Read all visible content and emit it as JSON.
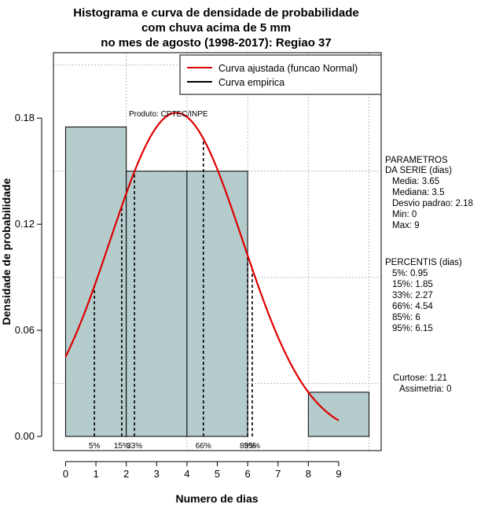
{
  "chart_data": {
    "type": "bar",
    "title_lines": [
      "Histograma e curva de densidade de probabilidade",
      "com chuva acima de 5 mm",
      "no mes de agosto (1998-2017): Regiao 37"
    ],
    "xlabel": "Numero de dias",
    "ylabel": "Densidade de probabilidade",
    "xlim": [
      -0.4,
      10.4
    ],
    "ylim": [
      -0.008,
      0.217
    ],
    "x_ticks": [
      0,
      1,
      2,
      3,
      4,
      5,
      6,
      7,
      8,
      9
    ],
    "y_ticks": [
      0.0,
      0.06,
      0.12,
      0.18
    ],
    "y_tick_labels": [
      "0.00",
      "0.06",
      "0.12",
      "0.18"
    ],
    "histogram": [
      {
        "x0": 0,
        "x1": 2,
        "density": 0.175
      },
      {
        "x0": 2,
        "x1": 4,
        "density": 0.15
      },
      {
        "x0": 4,
        "x1": 6,
        "density": 0.15
      },
      {
        "x0": 6,
        "x1": 8,
        "density": 0.0
      },
      {
        "x0": 8,
        "x1": 10,
        "density": 0.025
      }
    ],
    "bar_color": "#b5cccc",
    "curve_color": "#dd0000",
    "normal_fit": {
      "mean": 3.65,
      "sd": 2.18,
      "x_from": 0,
      "x_to": 9
    },
    "percentiles": [
      {
        "label": "5%",
        "value": 0.95
      },
      {
        "label": "15%",
        "value": 1.85
      },
      {
        "label": "33%",
        "value": 2.27
      },
      {
        "label": "66%",
        "value": 4.54
      },
      {
        "label": "85%",
        "value": 6
      },
      {
        "label": "95%",
        "value": 6.15
      }
    ],
    "legend": [
      {
        "label": "Curva ajustada (funcao Normal)",
        "color": "#dd0000"
      },
      {
        "label": "Curva empirica",
        "color": "#000000"
      }
    ],
    "product_label": "Produto: CPTEC/INPE"
  },
  "side_panel": {
    "params_title_1": "PARAMETROS",
    "params_title_2": "DA SERIE (dias)",
    "params": [
      "Media: 3.65",
      "Mediana: 3.5",
      "Desvio padrao: 2.18",
      "Min: 0",
      "Max: 9"
    ],
    "pct_title": "PERCENTIS (dias)",
    "pct_lines": [
      "5%: 0.95",
      "15%: 1.85",
      "33%: 2.27",
      "66%: 4.54",
      "85%: 6",
      "95%: 6.15"
    ],
    "curtose": "Curtose: 1.21",
    "assimetria": "Assimetria: 0"
  }
}
